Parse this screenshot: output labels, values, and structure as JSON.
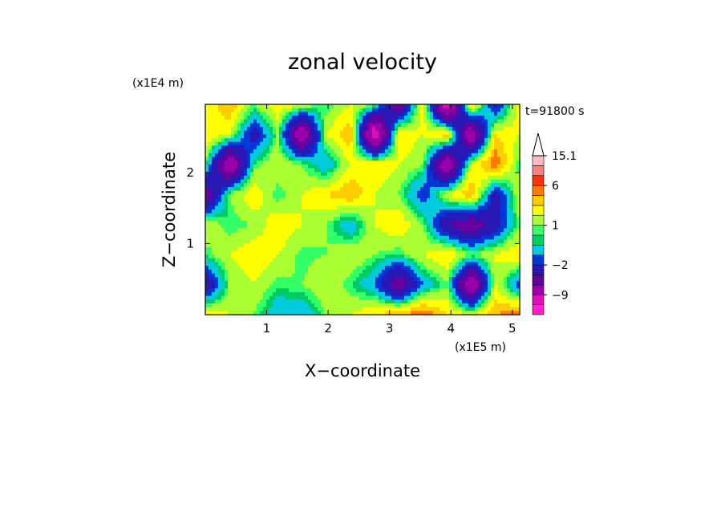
{
  "chart_data": {
    "type": "heatmap",
    "title": "zonal velocity",
    "xlabel": "X−coordinate",
    "ylabel": "Z−coordinate",
    "x_unit": "(x1E5 m)",
    "y_unit": "(x1E4 m)",
    "time_label": "t=91800 s",
    "xlim": [
      0,
      5.12
    ],
    "ylim": [
      0,
      2.96
    ],
    "x_ticks": [
      1,
      2,
      3,
      4,
      5
    ],
    "x_tick_labels": [
      "1",
      "2",
      "3",
      "4",
      "5"
    ],
    "y_ticks": [
      1,
      2
    ],
    "y_tick_labels": [
      "1",
      "2"
    ],
    "colorbar": {
      "levels": [
        -15,
        -12,
        -9,
        -6,
        -4,
        -2,
        -1,
        0,
        0.5,
        1,
        2,
        3,
        4,
        6,
        9,
        12,
        15.1
      ],
      "colors": [
        "#ff22cc",
        "#dd10b8",
        "#9900aa",
        "#66009e",
        "#2a18b4",
        "#0038d8",
        "#00ccdd",
        "#00cc66",
        "#33ff66",
        "#aaff33",
        "#ffff00",
        "#ffcc00",
        "#ff7a00",
        "#ff3300",
        "#ff8080",
        "#ffbcbc"
      ],
      "extend_max_color": "#ffffff",
      "tick_labels": [
        {
          "level": 15.1,
          "text": "15.1"
        },
        {
          "level": 6,
          "text": "6"
        },
        {
          "level": 1,
          "text": "1"
        },
        {
          "level": -2,
          "text": "−2"
        },
        {
          "level": -9,
          "text": "−9"
        }
      ]
    },
    "field": {
      "nx": 14,
      "nz": 8,
      "note_rows": "rows ordered bottom to top",
      "values": [
        [
          3,
          2,
          1,
          -1,
          -1,
          1,
          2,
          3,
          4,
          5,
          3,
          2,
          4,
          5
        ],
        [
          -4,
          1,
          2,
          0.7,
          1,
          2,
          0.5,
          -1,
          -6,
          -1,
          1,
          -9,
          2,
          -2
        ],
        [
          0.5,
          2,
          3,
          2,
          0.7,
          1,
          2,
          1,
          0.5,
          2,
          3,
          1,
          2,
          3
        ],
        [
          2,
          0.5,
          1,
          3,
          2,
          1,
          -1,
          2,
          3,
          1,
          -4,
          -6,
          -3,
          1
        ],
        [
          -6,
          1,
          3,
          0.5,
          2,
          3,
          4,
          2,
          1,
          -2,
          2,
          4,
          -3,
          2
        ],
        [
          1,
          -9,
          0.5,
          2,
          1,
          -1,
          2,
          3,
          2,
          1,
          -9,
          2,
          5,
          0.5
        ],
        [
          3,
          2,
          -3,
          1,
          -9,
          2,
          4,
          -12,
          3,
          2,
          4,
          -9,
          3,
          2
        ],
        [
          2,
          4,
          1,
          3,
          2,
          0.5,
          2,
          1,
          -6,
          3,
          -12,
          4,
          -3,
          3
        ]
      ]
    }
  }
}
